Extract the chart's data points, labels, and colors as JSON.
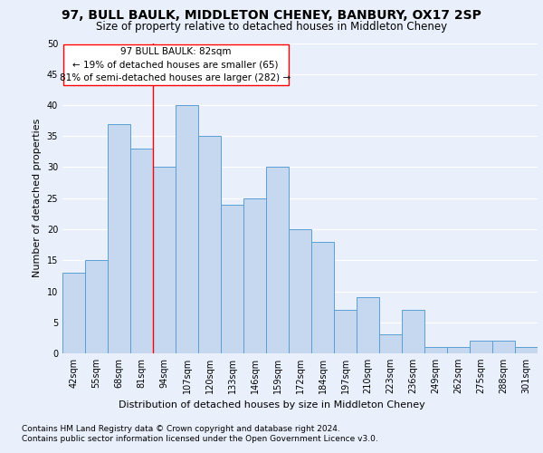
{
  "title": "97, BULL BAULK, MIDDLETON CHENEY, BANBURY, OX17 2SP",
  "subtitle": "Size of property relative to detached houses in Middleton Cheney",
  "xlabel": "Distribution of detached houses by size in Middleton Cheney",
  "ylabel": "Number of detached properties",
  "footnote1": "Contains HM Land Registry data © Crown copyright and database right 2024.",
  "footnote2": "Contains public sector information licensed under the Open Government Licence v3.0.",
  "annotation_title": "97 BULL BAULK: 82sqm",
  "annotation_line1": "← 19% of detached houses are smaller (65)",
  "annotation_line2": "81% of semi-detached houses are larger (282) →",
  "bar_labels": [
    "42sqm",
    "55sqm",
    "68sqm",
    "81sqm",
    "94sqm",
    "107sqm",
    "120sqm",
    "133sqm",
    "146sqm",
    "159sqm",
    "172sqm",
    "184sqm",
    "197sqm",
    "210sqm",
    "223sqm",
    "236sqm",
    "249sqm",
    "262sqm",
    "275sqm",
    "288sqm",
    "301sqm"
  ],
  "bar_heights": [
    13,
    15,
    37,
    33,
    30,
    40,
    35,
    24,
    25,
    30,
    20,
    18,
    7,
    9,
    3,
    7,
    1,
    1,
    2,
    2,
    1
  ],
  "bar_color": "#c5d8f0",
  "bar_edge_color": "#5a9fd4",
  "red_line_index": 3,
  "ylim": [
    0,
    50
  ],
  "yticks": [
    0,
    5,
    10,
    15,
    20,
    25,
    30,
    35,
    40,
    45,
    50
  ],
  "background_color": "#eaf0fb",
  "plot_background": "#eaf0fb",
  "grid_color": "#ffffff",
  "title_fontsize": 10,
  "subtitle_fontsize": 8.5,
  "ylabel_fontsize": 8,
  "annotation_fontsize": 7.5,
  "tick_fontsize": 7,
  "xlabel_fontsize": 8,
  "footnote_fontsize": 6.5
}
